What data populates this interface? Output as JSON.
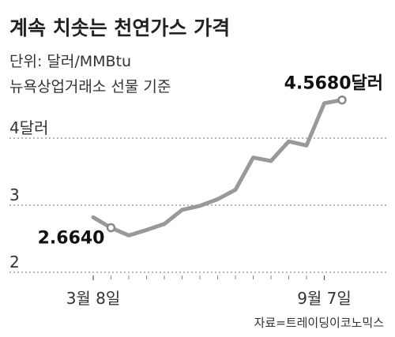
{
  "chart_data": {
    "type": "line",
    "title": "계속 치솟는 천연가스 가격",
    "subtitle": [
      "단위: 달러/MMBtu",
      "뉴욕상업거래소 선물 기준"
    ],
    "ylim": [
      2,
      4.75
    ],
    "yticks": [
      {
        "value": 4,
        "label": "4달러"
      },
      {
        "value": 3,
        "label": "3"
      },
      {
        "value": 2,
        "label": "2"
      }
    ],
    "xticks": [
      {
        "index": 0,
        "label": "3월 8일"
      },
      {
        "index": 13,
        "label": "9월 7일"
      }
    ],
    "grid": true,
    "line_color": "#999999",
    "series": [
      {
        "values": [
          2.82,
          2.664,
          2.55,
          2.63,
          2.72,
          2.93,
          2.99,
          3.09,
          3.23,
          3.71,
          3.66,
          3.95,
          3.89,
          4.52,
          4.568
        ]
      }
    ],
    "annotations": [
      {
        "index": 1,
        "label": "2.6640"
      },
      {
        "index": 14,
        "label": "4.5680달러"
      }
    ],
    "source": "자료=트레이딩이코노믹스"
  }
}
